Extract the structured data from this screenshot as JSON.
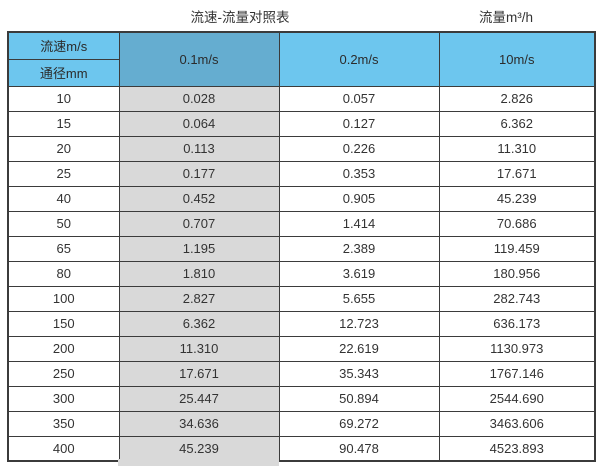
{
  "titles": {
    "main": "流速-流量对照表",
    "right": "流量m³/h"
  },
  "header": {
    "corner_top": "流速m/s",
    "corner_bottom": "通径mm",
    "columns": [
      "0.1m/s",
      "0.2m/s",
      "10m/s"
    ]
  },
  "colors": {
    "header_bg": "#6dc6ee",
    "header_highlight_bg": "#65add0",
    "highlight_column_bg": "#d9d9d9",
    "border": "#3b3b3b",
    "text": "#333333",
    "background": "#ffffff"
  },
  "chart_data": {
    "type": "table",
    "title": "流速-流量对照表",
    "unit_label": "流量m³/h",
    "corner_header_top": "流速m/s",
    "corner_header_bottom": "通径mm",
    "columns": [
      "通径mm",
      "0.1m/s",
      "0.2m/s",
      "10m/s"
    ],
    "rows": [
      [
        "10",
        "0.028",
        "0.057",
        "2.826"
      ],
      [
        "15",
        "0.064",
        "0.127",
        "6.362"
      ],
      [
        "20",
        "0.113",
        "0.226",
        "11.310"
      ],
      [
        "25",
        "0.177",
        "0.353",
        "17.671"
      ],
      [
        "40",
        "0.452",
        "0.905",
        "45.239"
      ],
      [
        "50",
        "0.707",
        "1.414",
        "70.686"
      ],
      [
        "65",
        "1.195",
        "2.389",
        "119.459"
      ],
      [
        "80",
        "1.810",
        "3.619",
        "180.956"
      ],
      [
        "100",
        "2.827",
        "5.655",
        "282.743"
      ],
      [
        "150",
        "6.362",
        "12.723",
        "636.173"
      ],
      [
        "200",
        "11.310",
        "22.619",
        "1130.973"
      ],
      [
        "250",
        "17.671",
        "35.343",
        "1767.146"
      ],
      [
        "300",
        "25.447",
        "50.894",
        "2544.690"
      ],
      [
        "350",
        "34.636",
        "69.272",
        "3463.606"
      ],
      [
        "400",
        "45.239",
        "90.478",
        "4523.893"
      ]
    ]
  }
}
